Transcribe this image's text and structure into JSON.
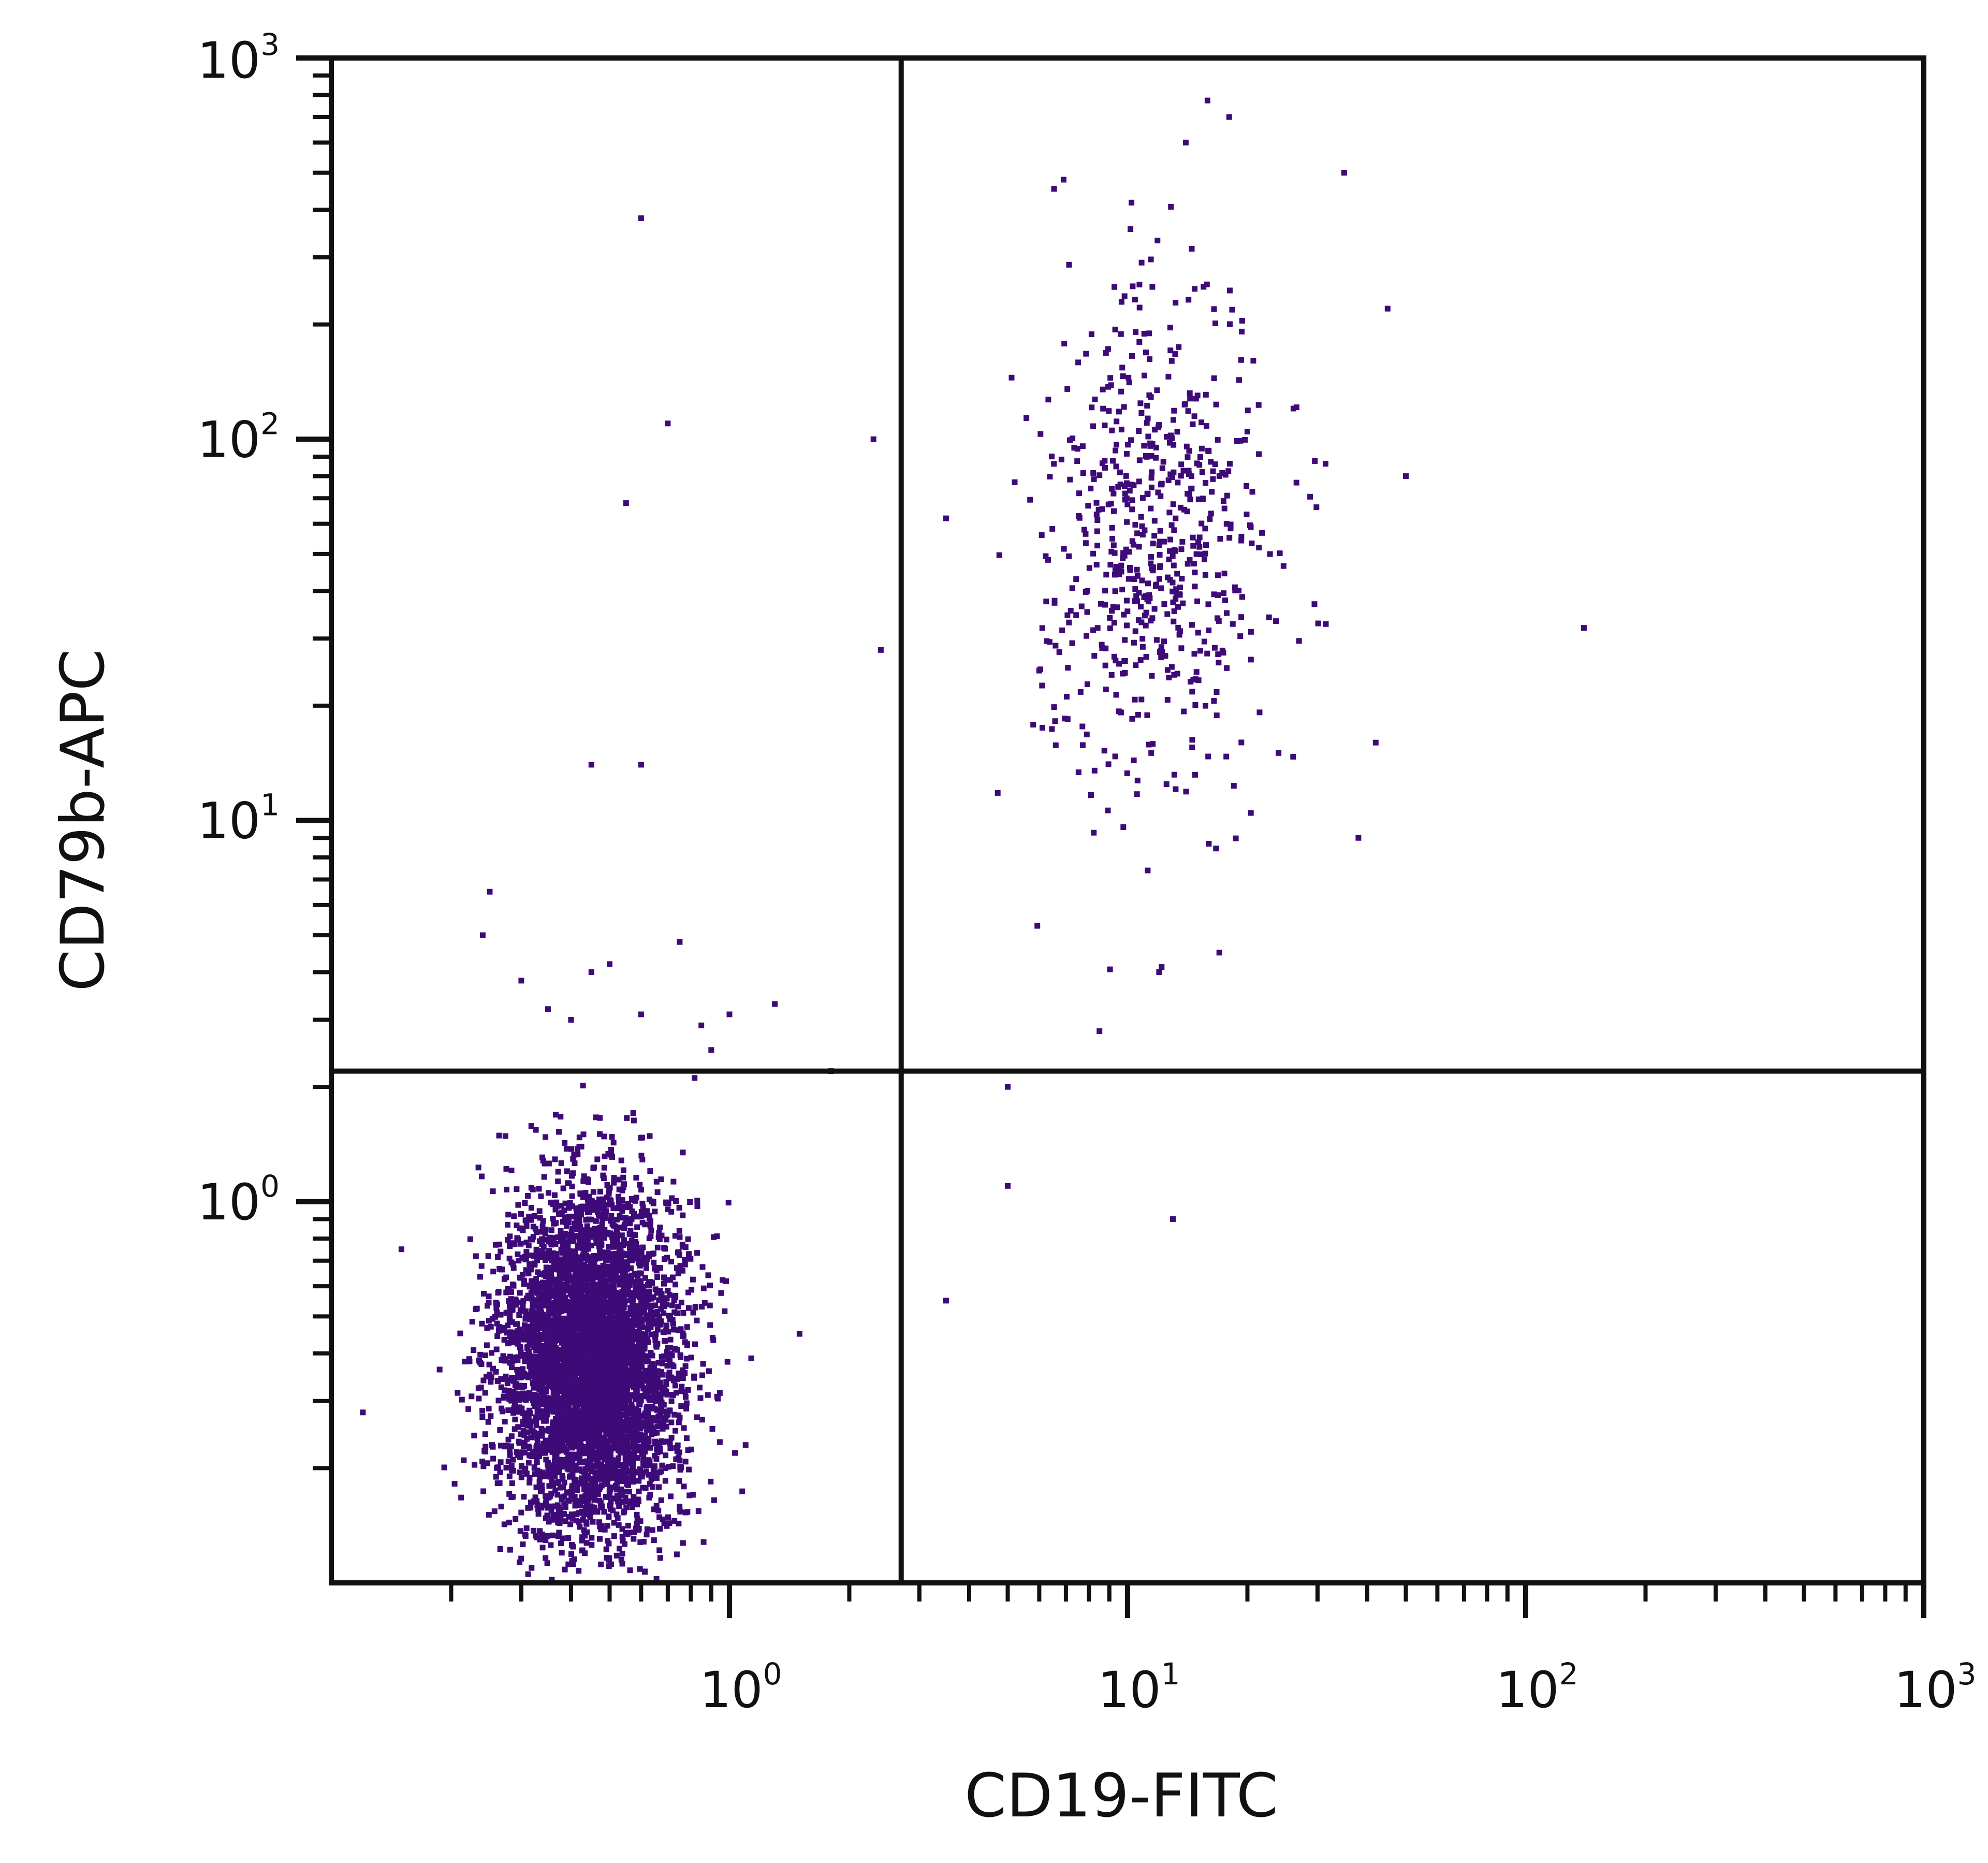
{
  "chart_data": {
    "type": "scatter",
    "title": "",
    "xlabel": "CD19-FITC",
    "ylabel": "CD79b-APC",
    "xscale": "log",
    "yscale": "log",
    "xlim": [
      0.1,
      1000
    ],
    "ylim": [
      0.1,
      1000
    ],
    "x_tick_labels": [
      {
        "value": 1,
        "base": "10",
        "exp": "0"
      },
      {
        "value": 10,
        "base": "10",
        "exp": "1"
      },
      {
        "value": 100,
        "base": "10",
        "exp": "2"
      },
      {
        "value": 1000,
        "base": "10",
        "exp": "3"
      }
    ],
    "y_tick_labels": [
      {
        "value": 1,
        "base": "10",
        "exp": "0"
      },
      {
        "value": 10,
        "base": "10",
        "exp": "1"
      },
      {
        "value": 100,
        "base": "10",
        "exp": "2"
      },
      {
        "value": 1000,
        "base": "10",
        "exp": "3"
      }
    ],
    "grid": false,
    "legend": "none",
    "point_color": "#3d0a78",
    "quadrant_gates": {
      "x": 2.7,
      "y": 2.2
    },
    "populations": [
      {
        "center": [
          0.45,
          0.38
        ],
        "spread_log10": [
          0.11,
          0.22
        ],
        "count": 5200
      },
      {
        "center": [
          11.5,
          55
        ],
        "spread_log10": [
          0.15,
          0.33
        ],
        "count": 620
      }
    ],
    "outliers": [
      [
        0.6,
        380
      ],
      [
        0.7,
        110
      ],
      [
        2.3,
        100
      ],
      [
        0.55,
        68
      ],
      [
        2.4,
        28
      ],
      [
        0.45,
        14
      ],
      [
        0.6,
        14
      ],
      [
        0.25,
        6.5
      ],
      [
        0.24,
        5.0
      ],
      [
        0.75,
        4.8
      ],
      [
        0.3,
        3.8
      ],
      [
        0.5,
        4.2
      ],
      [
        0.45,
        4.0
      ],
      [
        0.4,
        3.0
      ],
      [
        0.85,
        2.9
      ],
      [
        1.3,
        3.3
      ],
      [
        1.0,
        3.1
      ],
      [
        0.6,
        3.1
      ],
      [
        0.35,
        3.2
      ],
      [
        0.9,
        2.5
      ],
      [
        1.8,
        2.2
      ],
      [
        1.5,
        0.45
      ],
      [
        0.15,
        0.75
      ],
      [
        0.12,
        0.28
      ],
      [
        140,
        32
      ],
      [
        50,
        80
      ],
      [
        45,
        220
      ],
      [
        35,
        500
      ],
      [
        42,
        16
      ],
      [
        38,
        9
      ],
      [
        5,
        2.0
      ],
      [
        5,
        1.1
      ],
      [
        13,
        0.9
      ],
      [
        3.5,
        0.55
      ],
      [
        3.5,
        62
      ],
      [
        8.5,
        2.8
      ],
      [
        17,
        4.5
      ],
      [
        12,
        4.0
      ],
      [
        18,
        700
      ],
      [
        14,
        600
      ]
    ]
  }
}
